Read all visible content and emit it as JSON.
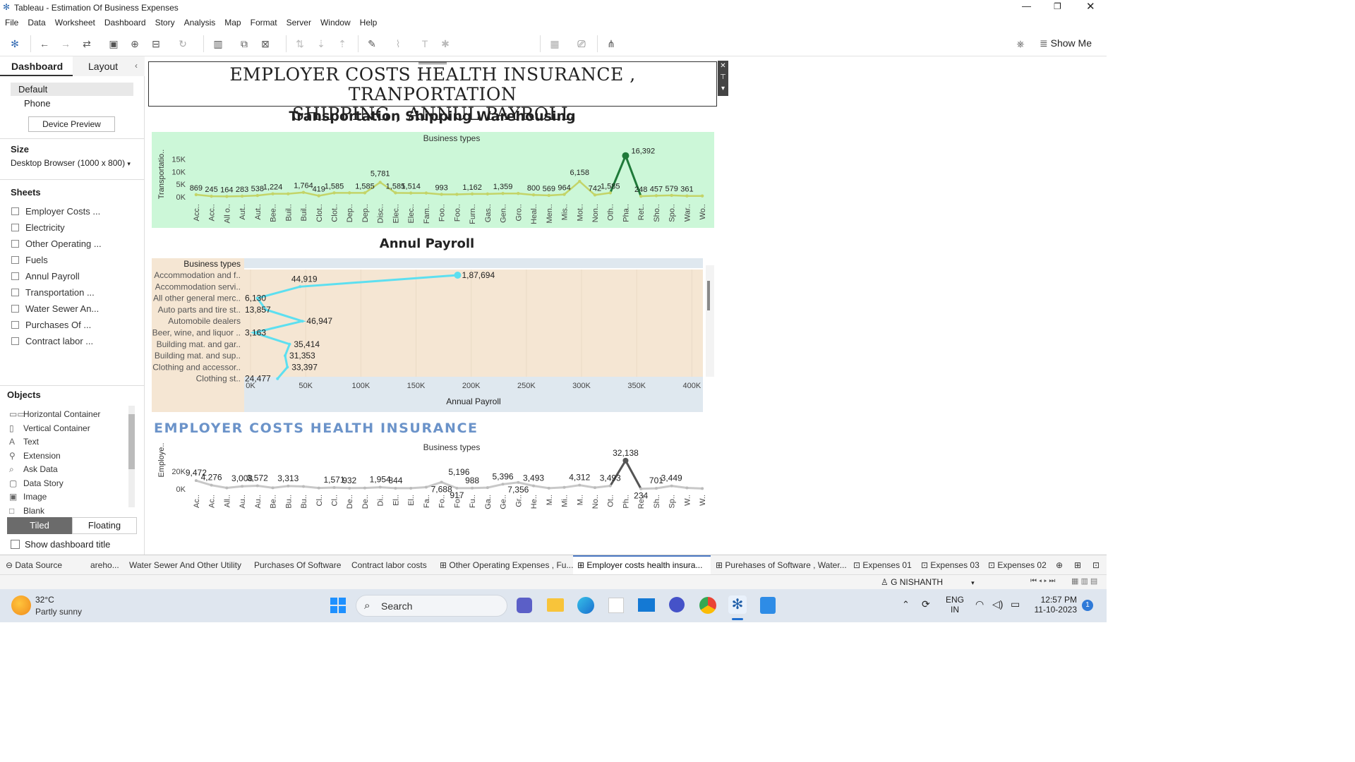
{
  "app": {
    "window_title": "Tableau - Estimation Of Business Expenses"
  },
  "menu": [
    "File",
    "Data",
    "Worksheet",
    "Dashboard",
    "Story",
    "Analysis",
    "Map",
    "Format",
    "Server",
    "Window",
    "Help"
  ],
  "toolbar": {
    "show_me": "Show Me"
  },
  "left": {
    "tab_dashboard": "Dashboard",
    "tab_layout": "Layout",
    "device_default": "Default",
    "device_phone": "Phone",
    "device_preview": "Device Preview",
    "size_heading": "Size",
    "size_value": "Desktop Browser (1000 x 800)",
    "sheets_heading": "Sheets",
    "sheets": [
      "Employer Costs ...",
      "Electricity",
      "Other Operating ...",
      "Fuels",
      "Annul Payroll",
      "Transportation ...",
      "Water Sewer An...",
      "Purchases Of ...",
      "Contract labor ..."
    ],
    "objects_heading": "Objects",
    "objects": [
      {
        "label": "Horizontal Container",
        "icon": "horizontal-container-icon",
        "glyph": "▭▭"
      },
      {
        "label": "Vertical Container",
        "icon": "vertical-container-icon",
        "glyph": "▯"
      },
      {
        "label": "Text",
        "icon": "text-icon",
        "glyph": "A"
      },
      {
        "label": "Extension",
        "icon": "extension-icon",
        "glyph": "⚲"
      },
      {
        "label": "Ask Data",
        "icon": "ask-data-icon",
        "glyph": "⌕"
      },
      {
        "label": "Data Story",
        "icon": "data-story-icon",
        "glyph": "▢"
      },
      {
        "label": "Image",
        "icon": "image-icon",
        "glyph": "▣"
      },
      {
        "label": "Blank",
        "icon": "blank-icon",
        "glyph": "□"
      }
    ],
    "tiled": "Tiled",
    "floating": "Floating",
    "show_title": "Show dashboard title"
  },
  "dashboard": {
    "title_line1": "EMPLOYER  COSTS HEALTH INSURANCE , TRANPORTATION",
    "title_line2": "SHIPPING , ANNUL PAYROLL"
  },
  "chart_data": [
    {
      "type": "line",
      "title": "Transportation Shipping Warehousing",
      "xlabel": "Business types",
      "ylabel": "Transportatio..",
      "categories": [
        "Acc..",
        "Acc..",
        "All o..",
        "Aut..",
        "Aut..",
        "Bee..",
        "Buil..",
        "Buil..",
        "Clot..",
        "Clot..",
        "Dep..",
        "Dep..",
        "Disc..",
        "Elec..",
        "Elec..",
        "Fam..",
        "Foo..",
        "Foo..",
        "Furn..",
        "Gas..",
        "Gen..",
        "Gro..",
        "Heal..",
        "Men..",
        "Mis..",
        "Mot..",
        "Non..",
        "Oth..",
        "Pha..",
        "Ret..",
        "Sho..",
        "Spo..",
        "War..",
        "Wo.."
      ],
      "values": [
        869,
        245,
        164,
        283,
        538,
        1224,
        1224,
        1764,
        419,
        1585,
        1585,
        1585,
        5781,
        1585,
        1514,
        1514,
        993,
        993,
        1162,
        1162,
        1359,
        1359,
        800,
        569,
        964,
        6158,
        742,
        1585,
        16392,
        248,
        457,
        579,
        361,
        361
      ],
      "labels": [
        "869",
        "245",
        "164",
        "283",
        "538",
        "1,224",
        "",
        "1,764",
        "419",
        "1,585",
        "",
        "1,585",
        "5,781",
        "1,585",
        "1,514",
        "",
        "993",
        "",
        "1,162",
        "",
        "1,359",
        "",
        "800",
        "569",
        "964",
        "6,158",
        "742",
        "1,585",
        "16,392",
        "248",
        "457",
        "579",
        "361",
        ""
      ],
      "yticks": [
        "0K",
        "5K",
        "10K",
        "15K"
      ],
      "ylim": [
        0,
        18000
      ],
      "background": "#ccf7d8",
      "line_color": "#c3d468",
      "peak_color": "#1f7a3a"
    },
    {
      "type": "line",
      "title": "Annul Payroll",
      "orientation": "horizontal",
      "xlabel": "Annual Payroll",
      "ylabel": "Business types",
      "categories": [
        "Accommodation and f..",
        "Accommodation servi..",
        "All other general merc..",
        "Auto parts and tire st..",
        "Automobile dealers",
        "Beer, wine, and liquor ..",
        "Building mat. and gar..",
        "Building mat. and sup..",
        "Clothing and accessor..",
        "Clothing st.."
      ],
      "values": [
        187694,
        44919,
        6130,
        13857,
        46947,
        3163,
        35414,
        31353,
        33397,
        24477
      ],
      "labels": [
        "1,87,694",
        "44,919",
        "6,130",
        "13,857",
        "46,947",
        "3,163",
        "35,414",
        "31,353",
        "33,397",
        "24,477"
      ],
      "xticks": [
        "0K",
        "50K",
        "100K",
        "150K",
        "200K",
        "250K",
        "300K",
        "350K",
        "400K"
      ],
      "xlim": [
        0,
        410000
      ],
      "line_color": "#5ddff0",
      "background": "#f5e6d3"
    },
    {
      "type": "line",
      "title": "EMPLOYER COSTS HEALTH INSURANCE",
      "xlabel": "Business types",
      "ylabel": "Employe..",
      "categories": [
        "Ac..",
        "Ac..",
        "All..",
        "Au..",
        "Au..",
        "Be..",
        "Bu..",
        "Bu..",
        "Cl..",
        "Cl..",
        "De..",
        "De..",
        "Di..",
        "El..",
        "El..",
        "Fa..",
        "Fo..",
        "Fo..",
        "Fu..",
        "Ga..",
        "Ge..",
        "Gr..",
        "He..",
        "M..",
        "Mi..",
        "M..",
        "No..",
        "Ot..",
        "Ph..",
        "Re..",
        "Sh..",
        "Sp..",
        "W..",
        "W.."
      ],
      "values": [
        9472,
        4276,
        1200,
        3008,
        3572,
        1300,
        3313,
        2800,
        1100,
        1571,
        932,
        1100,
        1954,
        844,
        844,
        2000,
        7688,
        917,
        988,
        1500,
        5396,
        7356,
        3493,
        900,
        1800,
        4312,
        1500,
        3493,
        32138,
        234,
        701,
        3449,
        1200,
        500
      ],
      "labels": [
        "9,472",
        "4,276",
        "",
        "3,008",
        "3,572",
        "",
        "3,313",
        "",
        "",
        "1,571",
        "932",
        "",
        "1,954",
        "844",
        "",
        "",
        "7,688",
        "917",
        "988",
        "",
        "5,396",
        "7,356",
        "3,493",
        "",
        "",
        "4,312",
        "",
        "3,493",
        "32,138",
        "234",
        "701",
        "3,449",
        "",
        ""
      ],
      "extra_label": {
        "index": 17,
        "text": "5,196"
      },
      "yticks": [
        "0K",
        "20K"
      ],
      "ylim": [
        0,
        40000
      ],
      "line_color": "#c8c8c8",
      "peak_color": "#555555"
    }
  ],
  "sheettabs": [
    "Data Source",
    "areho...",
    "Water Sewer And Other Utility",
    "Purchases Of Software",
    "Contract labor costs",
    "Other Operating Expenses , Fu...",
    "Employer costs health insura...",
    "Purehases of Software , Water...",
    "Expenses 01",
    "Expenses 03",
    "Expenses 02"
  ],
  "status": {
    "user": "G NISHANTH"
  },
  "taskbar": {
    "temp": "32°C",
    "weather": "Partly sunny",
    "search": "Search",
    "lang1": "ENG",
    "lang2": "IN",
    "time": "12:57 PM",
    "date": "11-10-2023",
    "badge": "1"
  }
}
